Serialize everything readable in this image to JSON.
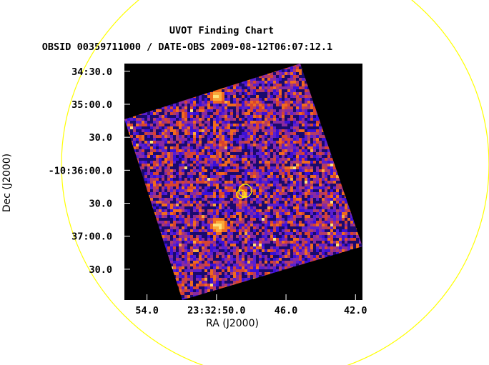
{
  "chart_data": {
    "type": "image",
    "title": "UVOT Finding Chart",
    "subtitle": "OBSID 00359711000 / DATE-OBS 2009-08-12T06:07:12.1",
    "xlabel": "RA (J2000)",
    "ylabel": "Dec (J2000)",
    "x_ticks": [
      {
        "label": "54.0",
        "ra_sec": 54.0
      },
      {
        "label": "23:32:50.0",
        "ra_sec": 50.0
      },
      {
        "label": "46.0",
        "ra_sec": 46.0
      },
      {
        "label": "42.0",
        "ra_sec": 42.0
      }
    ],
    "y_ticks": [
      {
        "label": "34:30.0",
        "dec_arcsec_below_36": -90
      },
      {
        "label": "35:00.0",
        "dec_arcsec_below_36": -60
      },
      {
        "label": "30.0",
        "dec_arcsec_below_36": -30
      },
      {
        "label": "-10:36:00.0",
        "dec_arcsec_below_36": 0
      },
      {
        "label": "30.0",
        "dec_arcsec_below_36": 30
      },
      {
        "label": "37:00.0",
        "dec_arcsec_below_36": 60
      },
      {
        "label": "30.0",
        "dec_arcsec_below_36": 90
      }
    ],
    "ra_range_sec": [
      55.3,
      41.6
    ],
    "dec_range_arcsec_below_36": [
      -97,
      118
    ],
    "colormap": [
      "#000000",
      "#1a0a6e",
      "#3b10d8",
      "#5a1fd0",
      "#8a2aa0",
      "#b03a6a",
      "#d8432f",
      "#f06a1e",
      "#f9a83a",
      "#fde27a",
      "#ffffff"
    ],
    "annotation_colors": {
      "large_circle": "#ffff00",
      "target_circles": "#ffff00",
      "background": "#000000"
    }
  }
}
